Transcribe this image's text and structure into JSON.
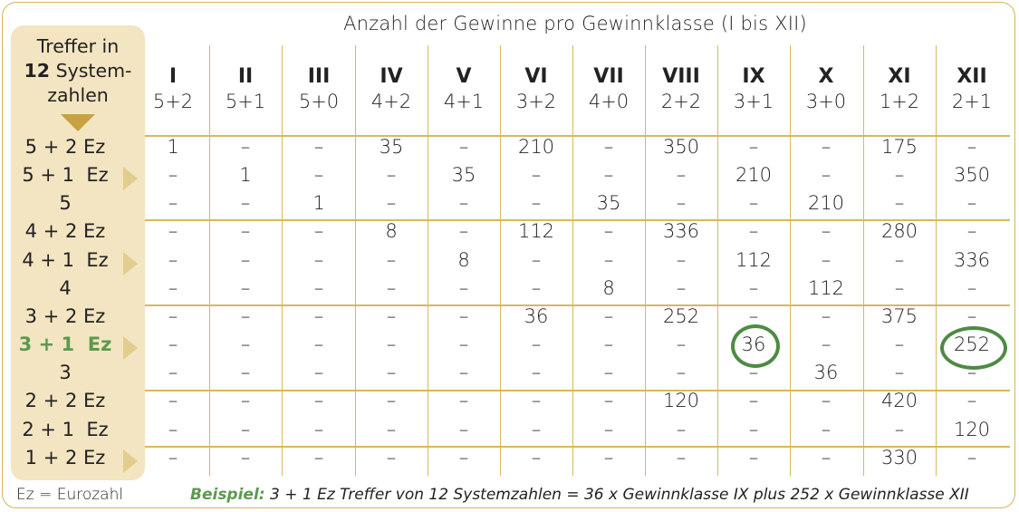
{
  "title": "Anzahl der Gewinne pro Gewinnklasse (I bis XII)",
  "header_label": {
    "line1": "Treffer in",
    "line2_bold": "12",
    "line2_rest": " System-",
    "line3": "zahlen"
  },
  "classes": [
    {
      "roman": "I",
      "combo": "5+2"
    },
    {
      "roman": "II",
      "combo": "5+1"
    },
    {
      "roman": "III",
      "combo": "5+0"
    },
    {
      "roman": "IV",
      "combo": "4+2"
    },
    {
      "roman": "V",
      "combo": "4+1"
    },
    {
      "roman": "VI",
      "combo": "3+2"
    },
    {
      "roman": "VII",
      "combo": "4+0"
    },
    {
      "roman": "VIII",
      "combo": "2+2"
    },
    {
      "roman": "IX",
      "combo": "3+1"
    },
    {
      "roman": "X",
      "combo": "3+0"
    },
    {
      "roman": "XI",
      "combo": "1+2"
    },
    {
      "roman": "XII",
      "combo": "2+1"
    }
  ],
  "rows": [
    {
      "label": "5 + 2 Ez",
      "arrow": false,
      "highlight": false,
      "cells": [
        "1",
        "–",
        "–",
        "35",
        "–",
        "210",
        "–",
        "350",
        "–",
        "–",
        "175",
        "–"
      ]
    },
    {
      "label": "5 + 1  Ez",
      "arrow": true,
      "highlight": false,
      "cells": [
        "–",
        "1",
        "–",
        "–",
        "35",
        "–",
        "–",
        "–",
        "210",
        "–",
        "–",
        "350"
      ]
    },
    {
      "label": "5",
      "arrow": false,
      "highlight": false,
      "cells": [
        "–",
        "–",
        "1",
        "–",
        "–",
        "–",
        "35",
        "–",
        "–",
        "210",
        "–",
        "–"
      ]
    },
    {
      "label": "4 + 2 Ez",
      "arrow": false,
      "highlight": false,
      "cells": [
        "–",
        "–",
        "–",
        "8",
        "–",
        "112",
        "–",
        "336",
        "–",
        "–",
        "280",
        "–"
      ]
    },
    {
      "label": "4 + 1  Ez",
      "arrow": true,
      "highlight": false,
      "cells": [
        "–",
        "–",
        "–",
        "–",
        "8",
        "–",
        "–",
        "–",
        "112",
        "–",
        "–",
        "336"
      ]
    },
    {
      "label": "4",
      "arrow": false,
      "highlight": false,
      "cells": [
        "–",
        "–",
        "–",
        "–",
        "–",
        "–",
        "8",
        "–",
        "–",
        "112",
        "–",
        "–"
      ]
    },
    {
      "label": "3 + 2 Ez",
      "arrow": false,
      "highlight": false,
      "cells": [
        "–",
        "–",
        "–",
        "–",
        "–",
        "36",
        "–",
        "252",
        "–",
        "–",
        "375",
        "–"
      ]
    },
    {
      "label": "3 + 1  Ez",
      "arrow": true,
      "highlight": true,
      "cells": [
        "–",
        "–",
        "–",
        "–",
        "–",
        "–",
        "–",
        "–",
        "36",
        "–",
        "–",
        "252"
      ]
    },
    {
      "label": "3",
      "arrow": false,
      "highlight": false,
      "cells": [
        "–",
        "–",
        "–",
        "–",
        "–",
        "–",
        "–",
        "–",
        "–",
        "36",
        "–",
        "–"
      ]
    },
    {
      "label": "2 + 2 Ez",
      "arrow": false,
      "highlight": false,
      "cells": [
        "–",
        "–",
        "–",
        "–",
        "–",
        "–",
        "–",
        "120",
        "–",
        "–",
        "420",
        "–"
      ]
    },
    {
      "label": "2 + 1  Ez",
      "arrow": false,
      "highlight": false,
      "cells": [
        "–",
        "–",
        "–",
        "–",
        "–",
        "–",
        "–",
        "–",
        "–",
        "–",
        "–",
        "120"
      ]
    },
    {
      "label": "1 + 2 Ez",
      "arrow": true,
      "highlight": false,
      "cells": [
        "–",
        "–",
        "–",
        "–",
        "–",
        "–",
        "–",
        "–",
        "–",
        "–",
        "330",
        "–"
      ]
    }
  ],
  "footnote_left": "Ez = Eurozahl",
  "example_label": "Beispiel:",
  "example_text": " 3 + 1 Ez Treffer von 12 Systemzahlen = 36 x Gewinnklasse IX plus 252 x Gewinnklasse XII",
  "colors": {
    "gold": "#d8b75f",
    "sidebar": "#f3e5c1",
    "green": "#5c9a4f",
    "arrow": "#e2cd8f"
  }
}
